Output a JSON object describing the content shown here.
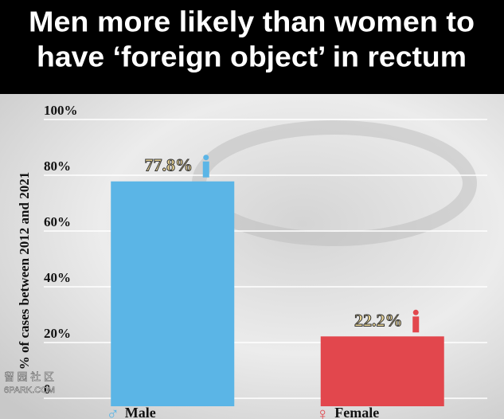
{
  "chart_data": {
    "type": "bar",
    "title": [
      "Men more likely than women to",
      "have ‘foreign object’ in rectum"
    ],
    "y_label": "% of cases between 2012 and 2021",
    "categories": [
      "Male",
      "Female"
    ],
    "values": [
      77.8,
      22.2
    ],
    "value_labels": [
      "77.8%",
      "22.2%"
    ],
    "colors": [
      "#5bb5e6",
      "#e2474d"
    ],
    "ylim": [
      0,
      100
    ],
    "yticks": [
      0,
      {
        "value": 20,
        "label": "20%"
      },
      {
        "value": 40,
        "label": "40%"
      },
      {
        "value": 60,
        "label": "60%"
      },
      {
        "value": 80,
        "label": "80%"
      },
      {
        "value": 100,
        "label": "100%"
      }
    ],
    "grid": true,
    "watermark": [
      "留 园 社 区",
      "6PARK.COM"
    ]
  }
}
